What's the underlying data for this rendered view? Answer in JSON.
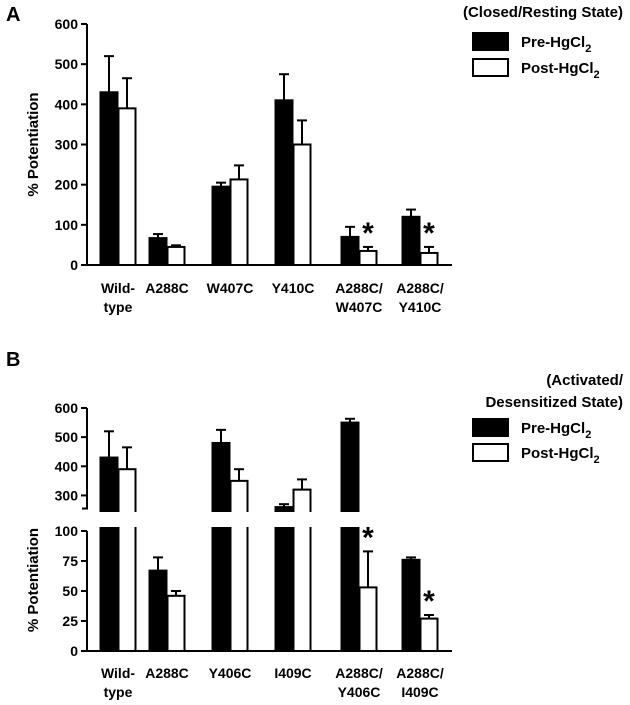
{
  "chart_data": [
    {
      "panel": "A",
      "type": "bar",
      "state_label": "(Closed/Resting State)",
      "ylabel": "% Potentiation",
      "ylim": [
        0,
        600
      ],
      "yticks": [
        "0",
        "100",
        "200",
        "300",
        "400",
        "500",
        "600"
      ],
      "categories": [
        [
          "Wild-",
          "type"
        ],
        [
          "A288C"
        ],
        [
          "W407C"
        ],
        [
          "Y410C"
        ],
        [
          "A288C/",
          "W407C"
        ],
        [
          "A288C/",
          "Y410C"
        ]
      ],
      "series": [
        {
          "name": "Pre-HgCl2",
          "name_main": "Pre-HgCl",
          "name_sub": "2",
          "fill": "#000000",
          "values": [
            430,
            67,
            195,
            410,
            70,
            120
          ],
          "errors": [
            90,
            10,
            10,
            65,
            25,
            18
          ]
        },
        {
          "name": "Post-HgCl2",
          "name_main": "Post-HgCl",
          "name_sub": "2",
          "fill": "#ffffff",
          "values": [
            390,
            45,
            213,
            300,
            35,
            30
          ],
          "errors": [
            75,
            4,
            35,
            60,
            10,
            15
          ]
        }
      ],
      "significance": [
        null,
        null,
        null,
        null,
        "*",
        "*"
      ]
    },
    {
      "panel": "B",
      "type": "bar",
      "state_label": [
        "(Activated/",
        "Desensitized State)"
      ],
      "ylabel": "% Potentiation",
      "axis_break": {
        "lower": [
          0,
          100
        ],
        "upper": [
          250,
          600
        ]
      },
      "yticks_lower": [
        "0",
        "25",
        "50",
        "75",
        "100"
      ],
      "yticks_upper": [
        "300",
        "400",
        "500",
        "600"
      ],
      "categories": [
        [
          "Wild-",
          "type"
        ],
        [
          "A288C"
        ],
        [
          "Y406C"
        ],
        [
          "I409C"
        ],
        [
          "A288C/",
          "Y406C"
        ],
        [
          "A288C/",
          "I409C"
        ]
      ],
      "series": [
        {
          "name": "Pre-HgCl2",
          "name_main": "Pre-HgCl",
          "name_sub": "2",
          "fill": "#000000",
          "values": [
            430,
            67,
            480,
            260,
            550,
            76
          ],
          "errors": [
            90,
            11,
            45,
            10,
            13,
            2
          ]
        },
        {
          "name": "Post-HgCl2",
          "name_main": "Post-HgCl",
          "name_sub": "2",
          "fill": "#ffffff",
          "values": [
            390,
            46,
            350,
            320,
            53,
            27
          ],
          "errors": [
            75,
            4,
            40,
            35,
            30,
            3
          ]
        }
      ],
      "significance": [
        null,
        null,
        null,
        null,
        "*",
        "*"
      ]
    }
  ]
}
